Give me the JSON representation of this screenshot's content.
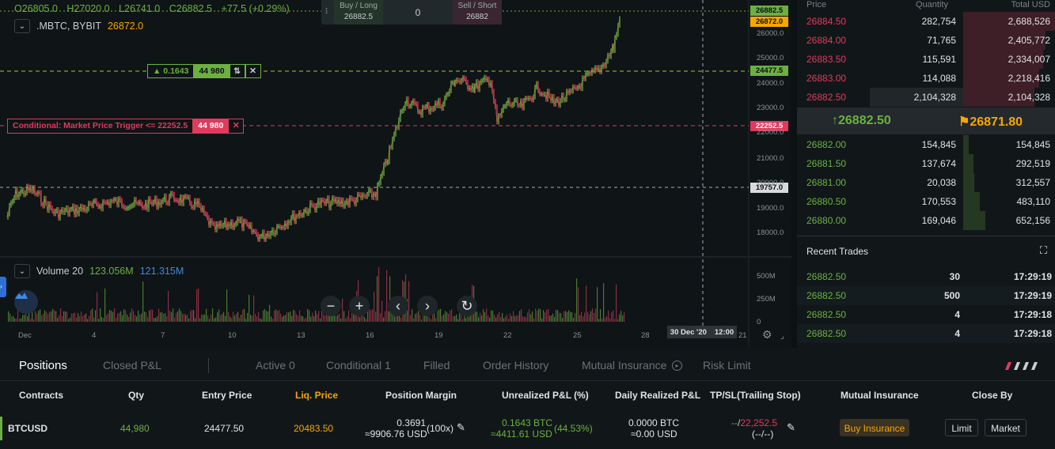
{
  "ohlc": {
    "open": "O26805.0",
    "high": "H27020.0",
    "low": "L26741.0",
    "close": "C26882.5",
    "change": "+77.5 (+0.29%)"
  },
  "symbol": {
    "name": ".MBTC, BYBIT",
    "last_price": "26872.0"
  },
  "trade_box": {
    "buy_label": "Buy / Long",
    "buy_price": "26882.5",
    "qty": "0",
    "sell_label": "Sell / Short",
    "sell_price": "26882"
  },
  "position_tag": {
    "pnl": "▲ 0.1643",
    "qty": "44 980"
  },
  "conditional_tag": {
    "label": "Conditional: Market Price Trigger <= 22252.5",
    "qty": "44 980"
  },
  "price_labels": {
    "top": "26882.5",
    "last": "26872.0",
    "entry": "24477.5",
    "trigger": "22252.5",
    "crosshair": "19757.0"
  },
  "y_ticks": [
    "26000.0",
    "25000.0",
    "24000.0",
    "23000.0",
    "22000.0",
    "21000.0",
    "20000.0",
    "19000.0",
    "18000.0"
  ],
  "vol_ticks": [
    "500M",
    "250M",
    "0"
  ],
  "x_ticks": [
    "Dec",
    "4",
    "7",
    "10",
    "13",
    "16",
    "19",
    "22",
    "25",
    "28",
    "21"
  ],
  "crosshair_date": {
    "date": "30 Dec '20",
    "time": "12:00"
  },
  "volume": {
    "label": "Volume 20",
    "v1": "123.056M",
    "v2": "121.315M"
  },
  "colors": {
    "up": "#6cb042",
    "down": "#e03a5d",
    "accent": "#f7a600",
    "blue": "#3d8be3"
  },
  "book": {
    "headers": {
      "price": "Price",
      "qty": "Quantity",
      "total": "Total USD"
    },
    "asks": [
      {
        "price": "26884.50",
        "qty": "282,754",
        "total": "2,688,526",
        "depth": 1.0
      },
      {
        "price": "26884.00",
        "qty": "71,765",
        "total": "2,405,772",
        "depth": 0.9
      },
      {
        "price": "26883.50",
        "qty": "115,591",
        "total": "2,334,007",
        "depth": 0.87
      },
      {
        "price": "26883.00",
        "qty": "114,088",
        "total": "2,218,416",
        "depth": 0.83
      },
      {
        "price": "26882.50",
        "qty": "2,104,328",
        "total": "2,104,328",
        "depth": 0.78
      }
    ],
    "mid": {
      "last": "26882.50",
      "mark": "26871.80"
    },
    "bids": [
      {
        "price": "26882.00",
        "qty": "154,845",
        "total": "154,845",
        "depth": 0.06
      },
      {
        "price": "26881.50",
        "qty": "137,674",
        "total": "292,519",
        "depth": 0.11
      },
      {
        "price": "26881.00",
        "qty": "20,038",
        "total": "312,557",
        "depth": 0.12
      },
      {
        "price": "26880.50",
        "qty": "170,553",
        "total": "483,110",
        "depth": 0.18
      },
      {
        "price": "26880.00",
        "qty": "169,046",
        "total": "652,156",
        "depth": 0.24
      }
    ]
  },
  "recent_trades": {
    "title": "Recent Trades",
    "rows": [
      {
        "price": "26882.50",
        "qty": "30",
        "time": "17:29:19"
      },
      {
        "price": "26882.50",
        "qty": "500",
        "time": "17:29:19"
      },
      {
        "price": "26882.50",
        "qty": "4",
        "time": "17:29:18"
      },
      {
        "price": "26882.50",
        "qty": "4",
        "time": "17:29:18"
      }
    ]
  },
  "tabs": [
    "Positions",
    "Closed P&L",
    "Active 0",
    "Conditional 1",
    "Filled",
    "Order History",
    "Mutual Insurance",
    "Risk Limit"
  ],
  "positions": {
    "headers": [
      "Contracts",
      "Qty",
      "Entry Price",
      "Liq. Price",
      "Position Margin",
      "Unrealized P&L (%)",
      "Daily Realized P&L",
      "TP/SL(Trailing Stop)",
      "Mutual Insurance",
      "Close By"
    ],
    "row": {
      "contract": "BTCUSD",
      "qty": "44,980",
      "entry": "24477.50",
      "liq": "20483.50",
      "margin_btc": "0.3691",
      "margin_usd": "≈9906.76 USD",
      "leverage": "(100x)",
      "upnl_btc": "0.1643 BTC",
      "upnl_usd": "≈4411.61 USD",
      "upnl_pct": "(44.53%)",
      "realized_btc": "0.0000 BTC",
      "realized_usd": "≈0.00 USD",
      "tp": "--",
      "sl": "22,252.5",
      "trailing": "(--/--)",
      "insurance_btn": "Buy Insurance",
      "limit_btn": "Limit",
      "market_btn": "Market"
    }
  }
}
